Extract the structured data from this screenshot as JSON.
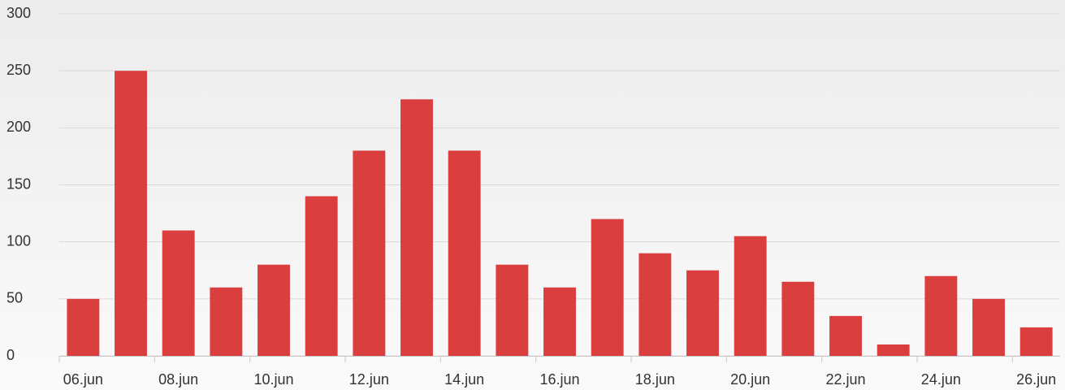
{
  "chart_data": {
    "type": "bar",
    "categories": [
      "06.jun",
      null,
      "08.jun",
      null,
      "10.jun",
      null,
      "12.jun",
      null,
      "14.jun",
      null,
      "16.jun",
      null,
      "18.jun",
      null,
      "20.jun",
      null,
      "22.jun",
      null,
      "24.jun",
      null,
      "26.jun"
    ],
    "values": [
      50,
      250,
      110,
      60,
      80,
      140,
      180,
      225,
      180,
      80,
      60,
      120,
      90,
      75,
      105,
      65,
      35,
      10,
      70,
      50,
      25
    ],
    "color": "#db3e3e",
    "ylim": [
      0,
      300
    ],
    "yticks": [
      0,
      50,
      100,
      150,
      200,
      250,
      300
    ],
    "grid": true
  }
}
